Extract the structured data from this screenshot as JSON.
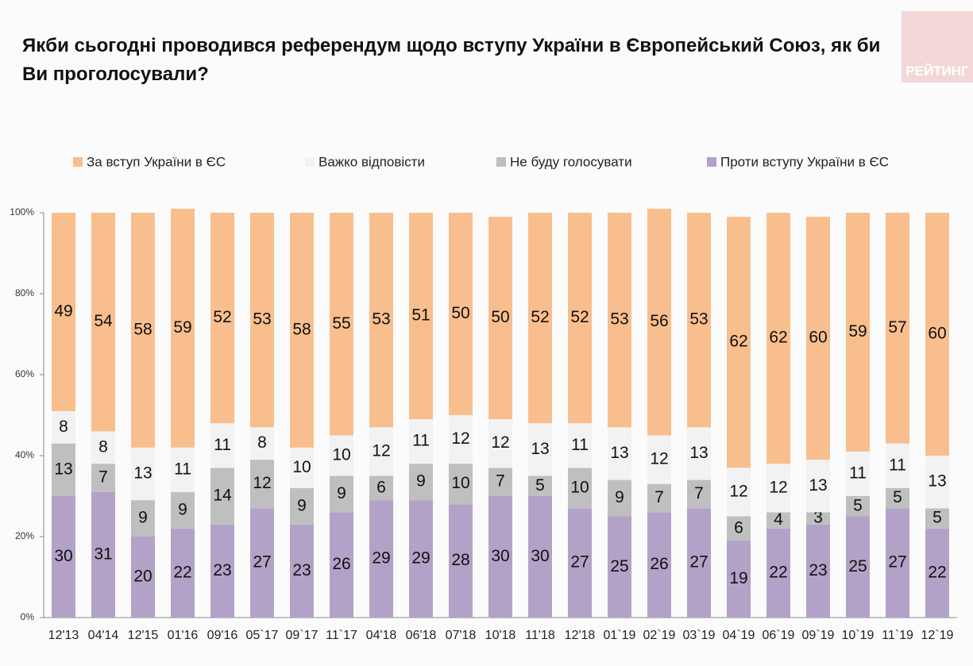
{
  "logo": "РЕЙТИНГ",
  "chart_data": {
    "type": "stacked-bar",
    "title": "Якби сьогодні проводився референдум щодо вступу України в Європейський Союз, як би Ви проголосували?",
    "categories": [
      "12'13",
      "04'14",
      "12'15",
      "01'16",
      "09'16",
      "05`17",
      "09`17",
      "11`17",
      "04'18",
      "06'18",
      "07'18",
      "10'18",
      "11'18",
      "12'18",
      "01`19",
      "02`19",
      "03`19",
      "04`19",
      "06`19",
      "09`19",
      "10`19",
      "11`19",
      "12`19"
    ],
    "series": [
      {
        "name": "Проти вступу України в ЄС",
        "color": "#b3a2c7",
        "values": [
          30,
          31,
          20,
          22,
          23,
          27,
          23,
          26,
          29,
          29,
          28,
          30,
          30,
          27,
          25,
          26,
          27,
          19,
          22,
          23,
          25,
          27,
          22
        ]
      },
      {
        "name": "Не буду голосувати",
        "color": "#bfbfbf",
        "values": [
          13,
          7,
          9,
          9,
          14,
          12,
          9,
          9,
          6,
          9,
          10,
          7,
          5,
          10,
          9,
          7,
          7,
          6,
          4,
          3,
          5,
          5,
          5
        ]
      },
      {
        "name": "Важко відповісти",
        "color": "#f2f2f2",
        "values": [
          8,
          8,
          13,
          11,
          11,
          8,
          10,
          10,
          12,
          11,
          12,
          12,
          13,
          11,
          13,
          12,
          13,
          12,
          12,
          13,
          11,
          11,
          13
        ]
      },
      {
        "name": "За вступ України в ЄС",
        "color": "#f9be8e",
        "values": [
          49,
          54,
          58,
          59,
          52,
          53,
          58,
          55,
          53,
          51,
          50,
          50,
          52,
          52,
          53,
          56,
          53,
          62,
          62,
          60,
          59,
          57,
          60
        ]
      }
    ],
    "ylim": [
      0,
      100
    ],
    "yticks": [
      {
        "value": 0,
        "label": "0%"
      },
      {
        "value": 20,
        "label": "20%"
      },
      {
        "value": 40,
        "label": "40%"
      },
      {
        "value": 60,
        "label": "60%"
      },
      {
        "value": 80,
        "label": "80%"
      },
      {
        "value": 100,
        "label": "100%"
      }
    ]
  }
}
